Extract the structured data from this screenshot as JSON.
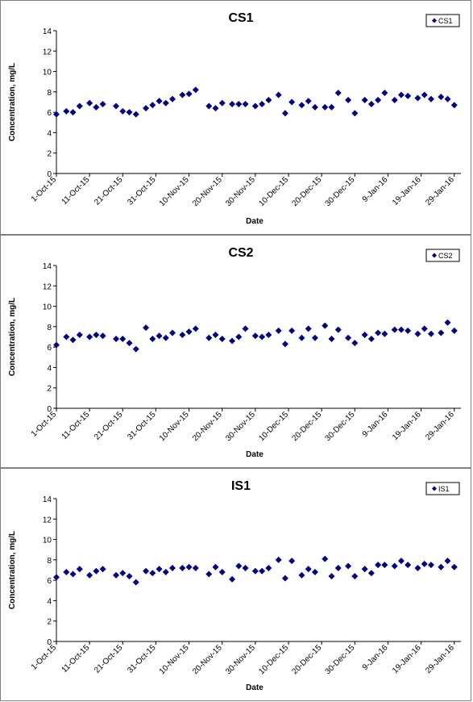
{
  "chart_data": [
    {
      "type": "scatter",
      "title": "CS1",
      "xlabel": "Date",
      "ylabel": "Concentration, mg/L",
      "ylim": [
        0,
        14
      ],
      "yticks": [
        "0",
        "2",
        "4",
        "6",
        "8",
        "10",
        "12",
        "14"
      ],
      "xticks": [
        "1-Oct-15",
        "11-Oct-15",
        "21-Oct-15",
        "31-Oct-15",
        "10-Nov-15",
        "20-Nov-15",
        "30-Nov-15",
        "10-Dec-15",
        "20-Dec-15",
        "30-Dec-15",
        "9-Jan-16",
        "19-Jan-16",
        "29-Jan-16"
      ],
      "xlim": [
        "2015-10-01",
        "2016-01-31"
      ],
      "grid": false,
      "legend": "top-right",
      "marker_color": "#000080",
      "series": [
        {
          "name": "CS1",
          "x": [
            "2015-10-01",
            "2015-10-04",
            "2015-10-06",
            "2015-10-08",
            "2015-10-11",
            "2015-10-13",
            "2015-10-15",
            "2015-10-19",
            "2015-10-21",
            "2015-10-23",
            "2015-10-25",
            "2015-10-28",
            "2015-10-30",
            "2015-11-01",
            "2015-11-03",
            "2015-11-05",
            "2015-11-08",
            "2015-11-10",
            "2015-11-12",
            "2015-11-16",
            "2015-11-18",
            "2015-11-20",
            "2015-11-23",
            "2015-11-25",
            "2015-11-27",
            "2015-11-30",
            "2015-12-02",
            "2015-12-04",
            "2015-12-07",
            "2015-12-09",
            "2015-12-11",
            "2015-12-14",
            "2015-12-16",
            "2015-12-18",
            "2015-12-21",
            "2015-12-23",
            "2015-12-25",
            "2015-12-28",
            "2015-12-30",
            "2016-01-02",
            "2016-01-04",
            "2016-01-06",
            "2016-01-08",
            "2016-01-11",
            "2016-01-13",
            "2016-01-15",
            "2016-01-18",
            "2016-01-20",
            "2016-01-22",
            "2016-01-25",
            "2016-01-27",
            "2016-01-29"
          ],
          "values": [
            5.8,
            6.1,
            6.0,
            6.6,
            6.9,
            6.5,
            6.8,
            6.6,
            6.1,
            6.0,
            5.8,
            6.4,
            6.7,
            7.1,
            6.9,
            7.3,
            7.7,
            7.8,
            8.2,
            6.6,
            6.4,
            6.9,
            6.8,
            6.8,
            6.8,
            6.6,
            6.8,
            7.2,
            7.7,
            5.9,
            7.0,
            6.7,
            7.1,
            6.5,
            6.5,
            6.5,
            7.9,
            7.2,
            5.9,
            7.2,
            6.8,
            7.2,
            7.9,
            7.2,
            7.7,
            7.6,
            7.4,
            7.7,
            7.3,
            7.5,
            7.3,
            6.7
          ]
        }
      ]
    },
    {
      "type": "scatter",
      "title": "CS2",
      "xlabel": "Date",
      "ylabel": "Concentration, mg/L",
      "ylim": [
        0,
        14
      ],
      "yticks": [
        "0",
        "2",
        "4",
        "6",
        "8",
        "10",
        "12",
        "14"
      ],
      "xticks": [
        "1-Oct-15",
        "11-Oct-15",
        "21-Oct-15",
        "31-Oct-15",
        "10-Nov-15",
        "20-Nov-15",
        "30-Nov-15",
        "10-Dec-15",
        "20-Dec-15",
        "30-Dec-15",
        "9-Jan-16",
        "19-Jan-16",
        "29-Jan-16"
      ],
      "xlim": [
        "2015-10-01",
        "2016-01-31"
      ],
      "grid": false,
      "legend": "top-right",
      "marker_color": "#000080",
      "series": [
        {
          "name": "CS2",
          "x": [
            "2015-10-01",
            "2015-10-04",
            "2015-10-06",
            "2015-10-08",
            "2015-10-11",
            "2015-10-13",
            "2015-10-15",
            "2015-10-19",
            "2015-10-21",
            "2015-10-23",
            "2015-10-25",
            "2015-10-28",
            "2015-10-30",
            "2015-11-01",
            "2015-11-03",
            "2015-11-05",
            "2015-11-08",
            "2015-11-10",
            "2015-11-12",
            "2015-11-16",
            "2015-11-18",
            "2015-11-20",
            "2015-11-23",
            "2015-11-25",
            "2015-11-27",
            "2015-11-30",
            "2015-12-02",
            "2015-12-04",
            "2015-12-07",
            "2015-12-09",
            "2015-12-11",
            "2015-12-14",
            "2015-12-16",
            "2015-12-18",
            "2015-12-21",
            "2015-12-23",
            "2015-12-25",
            "2015-12-28",
            "2015-12-30",
            "2016-01-02",
            "2016-01-04",
            "2016-01-06",
            "2016-01-08",
            "2016-01-11",
            "2016-01-13",
            "2016-01-15",
            "2016-01-18",
            "2016-01-20",
            "2016-01-22",
            "2016-01-25",
            "2016-01-27",
            "2016-01-29"
          ],
          "values": [
            6.2,
            7.0,
            6.7,
            7.2,
            7.0,
            7.2,
            7.1,
            6.8,
            6.8,
            6.4,
            5.8,
            7.9,
            6.8,
            7.1,
            6.9,
            7.4,
            7.2,
            7.5,
            7.8,
            6.9,
            7.2,
            6.8,
            6.6,
            7.0,
            7.8,
            7.1,
            7.0,
            7.2,
            7.6,
            6.3,
            7.6,
            6.9,
            7.8,
            6.9,
            8.1,
            6.8,
            7.7,
            6.9,
            6.4,
            7.2,
            6.8,
            7.4,
            7.3,
            7.7,
            7.7,
            7.6,
            7.3,
            7.8,
            7.3,
            7.4,
            8.4,
            7.6
          ]
        }
      ]
    },
    {
      "type": "scatter",
      "title": "IS1",
      "xlabel": "Date",
      "ylabel": "Concentration, mg/L",
      "ylim": [
        0,
        14
      ],
      "yticks": [
        "0",
        "2",
        "4",
        "6",
        "8",
        "10",
        "12",
        "14"
      ],
      "xticks": [
        "1-Oct-15",
        "11-Oct-15",
        "21-Oct-15",
        "31-Oct-15",
        "10-Nov-15",
        "20-Nov-15",
        "30-Nov-15",
        "10-Dec-15",
        "20-Dec-15",
        "30-Dec-15",
        "9-Jan-16",
        "19-Jan-16",
        "29-Jan-16"
      ],
      "xlim": [
        "2015-10-01",
        "2016-01-31"
      ],
      "grid": false,
      "legend": "top-right",
      "marker_color": "#000080",
      "series": [
        {
          "name": "IS1",
          "x": [
            "2015-10-01",
            "2015-10-04",
            "2015-10-06",
            "2015-10-08",
            "2015-10-11",
            "2015-10-13",
            "2015-10-15",
            "2015-10-19",
            "2015-10-21",
            "2015-10-23",
            "2015-10-25",
            "2015-10-28",
            "2015-10-30",
            "2015-11-01",
            "2015-11-03",
            "2015-11-05",
            "2015-11-08",
            "2015-11-10",
            "2015-11-12",
            "2015-11-16",
            "2015-11-18",
            "2015-11-20",
            "2015-11-23",
            "2015-11-25",
            "2015-11-27",
            "2015-11-30",
            "2015-12-02",
            "2015-12-04",
            "2015-12-07",
            "2015-12-09",
            "2015-12-11",
            "2015-12-14",
            "2015-12-16",
            "2015-12-18",
            "2015-12-21",
            "2015-12-23",
            "2015-12-25",
            "2015-12-28",
            "2015-12-30",
            "2016-01-02",
            "2016-01-04",
            "2016-01-06",
            "2016-01-08",
            "2016-01-11",
            "2016-01-13",
            "2016-01-15",
            "2016-01-18",
            "2016-01-20",
            "2016-01-22",
            "2016-01-25",
            "2016-01-27",
            "2016-01-29"
          ],
          "values": [
            6.3,
            6.8,
            6.6,
            7.1,
            6.5,
            6.9,
            7.1,
            6.5,
            6.7,
            6.4,
            5.8,
            6.9,
            6.7,
            7.1,
            6.8,
            7.2,
            7.2,
            7.3,
            7.2,
            6.6,
            7.3,
            6.8,
            6.1,
            7.4,
            7.2,
            6.9,
            6.9,
            7.2,
            8.0,
            6.2,
            7.9,
            6.5,
            7.1,
            6.8,
            8.1,
            6.4,
            7.2,
            7.4,
            6.4,
            7.1,
            6.7,
            7.5,
            7.5,
            7.4,
            7.9,
            7.5,
            7.2,
            7.6,
            7.5,
            7.3,
            7.9,
            7.3
          ]
        }
      ]
    }
  ]
}
